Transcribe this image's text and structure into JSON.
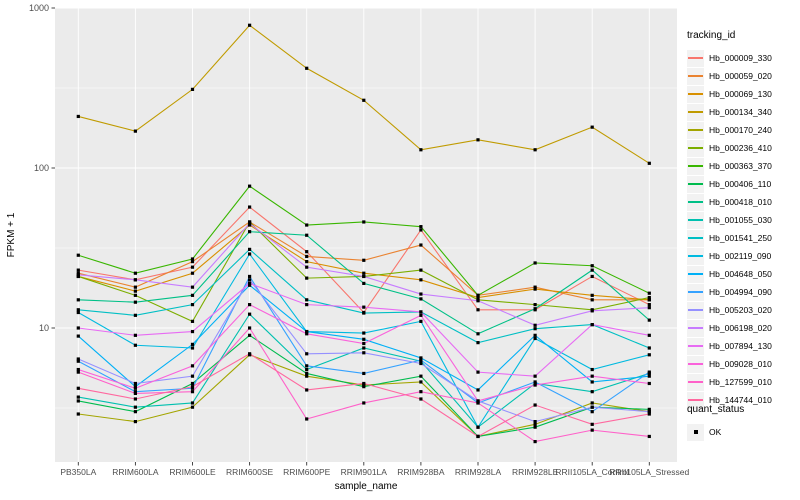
{
  "figure": {
    "legend": {
      "title": "tracking_id"
    },
    "quant_legend": {
      "title": "quant_status",
      "ok_label": "OK"
    }
  },
  "colors": {
    "panel_bg": "#EBEBEB",
    "gridline": "#FFFFFF",
    "axis_text": "#4D4D4D",
    "title_text": "#000000",
    "tick_mark": "#333333",
    "legend_key_bg": "#F2F2F2",
    "point": "#000000"
  },
  "chart_data": {
    "type": "line",
    "title": "",
    "xlabel": "sample_name",
    "ylabel": "FPKM + 1",
    "y_scale": "log10",
    "ylim": [
      1.45,
      1000
    ],
    "y_major_ticks": [
      10,
      100,
      1000
    ],
    "y_minor_gridlines": [
      3.162,
      31.62,
      316.2
    ],
    "grid": "white major/minor on gray panel",
    "legend_position": "right",
    "legend_title": "tracking_id",
    "point_style": "small black square (quant_status = OK)",
    "x_categories": [
      "PB350LA",
      "RRIM600LA",
      "RRIM600LE",
      "RRIM600SE",
      "RRIM600PE",
      "RRIM901LA",
      "RRIM928BA",
      "RRIM928LA",
      "RRIM928LE",
      "RRII105LA_Control",
      "RRII105LA_Stressed"
    ],
    "series": [
      {
        "name": "Hb_000009_330",
        "color": "#F8766D",
        "values": [
          23,
          20,
          24,
          57,
          30,
          12.5,
          41,
          13,
          13,
          21,
          14
        ]
      },
      {
        "name": "Hb_000059_020",
        "color": "#EA8331",
        "values": [
          22,
          18,
          26,
          46,
          28,
          26.5,
          33,
          16,
          18,
          15,
          15
        ]
      },
      {
        "name": "Hb_000069_130",
        "color": "#D89000",
        "values": [
          21,
          17,
          22,
          44,
          26,
          22,
          20,
          15.5,
          17.5,
          16,
          15
        ]
      },
      {
        "name": "Hb_000134_340",
        "color": "#C09B00",
        "values": [
          210,
          170,
          310,
          780,
          420,
          265,
          130,
          150,
          130,
          180,
          107
        ]
      },
      {
        "name": "Hb_000170_240",
        "color": "#A3A500",
        "values": [
          2.9,
          2.6,
          3.2,
          6.8,
          5.0,
          4.4,
          4.6,
          2.1,
          2.5,
          3.4,
          3.0
        ]
      },
      {
        "name": "Hb_000236_410",
        "color": "#7CAE00",
        "values": [
          21,
          16,
          11,
          46,
          20.5,
          21,
          23,
          15,
          14,
          13,
          15.5
        ]
      },
      {
        "name": "Hb_000363_370",
        "color": "#39B600",
        "values": [
          28.5,
          22,
          27,
          77,
          44,
          46,
          43,
          16,
          25.5,
          24.5,
          16.5
        ]
      },
      {
        "name": "Hb_000406_110",
        "color": "#00BB4E",
        "values": [
          3.5,
          3.0,
          4.5,
          9.0,
          5.2,
          4.3,
          5.0,
          2.1,
          2.4,
          3.2,
          3.1
        ]
      },
      {
        "name": "Hb_000418_010",
        "color": "#00C087",
        "values": [
          15,
          14.5,
          16,
          40,
          38,
          19,
          15.2,
          9.2,
          13.2,
          23,
          11.2
        ]
      },
      {
        "name": "Hb_001055_030",
        "color": "#00C0AF",
        "values": [
          3.7,
          3.2,
          3.4,
          12.2,
          5.5,
          7.5,
          6.2,
          2.4,
          4.5,
          4.0,
          5.2
        ]
      },
      {
        "name": "Hb_001541_250",
        "color": "#00BFC4",
        "values": [
          13,
          12,
          14,
          31,
          15,
          12.4,
          12.6,
          8.1,
          9.9,
          10.5,
          7.5
        ]
      },
      {
        "name": "Hb_002119_090",
        "color": "#00BAE0",
        "values": [
          12.5,
          7.8,
          7.5,
          29,
          9.5,
          9.3,
          11,
          2.4,
          8.6,
          5.5,
          6.8
        ]
      },
      {
        "name": "Hb_004648_050",
        "color": "#00B0F6",
        "values": [
          8.9,
          4.3,
          7.9,
          18.5,
          9.5,
          8.5,
          6.5,
          4.1,
          9.0,
          4.6,
          5.0
        ]
      },
      {
        "name": "Hb_004994_090",
        "color": "#35A2FF",
        "values": [
          6.2,
          4.0,
          4.2,
          21,
          5.8,
          5.2,
          6.3,
          3.4,
          4.6,
          3.0,
          5.3
        ]
      },
      {
        "name": "Hb_005203_020",
        "color": "#9590FF",
        "values": [
          6.4,
          4.5,
          5.0,
          20,
          6.9,
          7.0,
          6.0,
          3.5,
          2.6,
          3.2,
          3.0
        ]
      },
      {
        "name": "Hb_006198_020",
        "color": "#C77CFF",
        "values": [
          21.5,
          20,
          18,
          45,
          24,
          21,
          16.3,
          14.8,
          10.4,
          12.8,
          13.4
        ]
      },
      {
        "name": "Hb_007894_130",
        "color": "#E76BF3",
        "values": [
          10,
          9.0,
          9.5,
          19,
          14,
          13.5,
          12.6,
          5.3,
          5.0,
          10.5,
          9.0
        ]
      },
      {
        "name": "Hb_009028_010",
        "color": "#FA62DB",
        "values": [
          5.5,
          4.2,
          5.8,
          14,
          9.2,
          8.0,
          12.0,
          3.5,
          4.4,
          5.0,
          4.5
        ]
      },
      {
        "name": "Hb_127599_010",
        "color": "#FF61C9",
        "values": [
          5.3,
          3.9,
          4.0,
          10,
          2.7,
          3.4,
          4.0,
          3.4,
          1.95,
          2.3,
          2.1
        ]
      },
      {
        "name": "Hb_144744_010",
        "color": "#FF689F",
        "values": [
          4.2,
          3.6,
          4.3,
          6.9,
          4.1,
          4.5,
          3.6,
          2.1,
          3.3,
          2.5,
          2.9
        ]
      }
    ],
    "quant_status_legend": {
      "title": "quant_status",
      "items": [
        "OK"
      ]
    }
  }
}
